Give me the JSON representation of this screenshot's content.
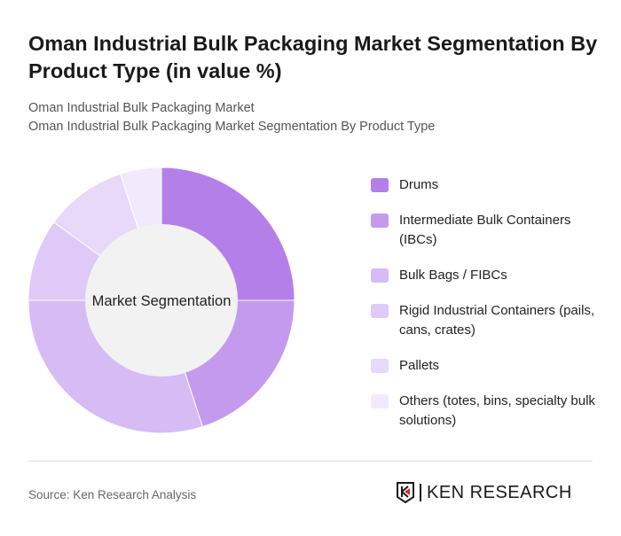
{
  "title": "Oman Industrial Bulk Packaging Market Segmentation By Product Type (in value %)",
  "subtitles": [
    "Oman Industrial Bulk Packaging Market",
    "Oman Industrial Bulk Packaging Market Segmentation By Product Type"
  ],
  "chart_data": {
    "type": "pie",
    "variant": "donut",
    "center_label": "Market Segmentation",
    "categories": [
      "Drums",
      "Intermediate Bulk Containers (IBCs)",
      "Bulk Bags / FIBCs",
      "Rigid Industrial Containers (pails, cans, crates)",
      "Pallets",
      "Others (totes, bins, specialty bulk solutions)"
    ],
    "values": [
      25,
      20,
      30,
      10,
      10,
      5
    ],
    "colors": [
      "#b57fea",
      "#c49aee",
      "#d6bbf5",
      "#dfc9f7",
      "#e8d8f9",
      "#f2eafc"
    ],
    "legend_position": "right"
  },
  "source": "Source: Ken Research Analysis",
  "logo": {
    "text": "KEN RESEARCH",
    "accent": "#e0262b"
  }
}
